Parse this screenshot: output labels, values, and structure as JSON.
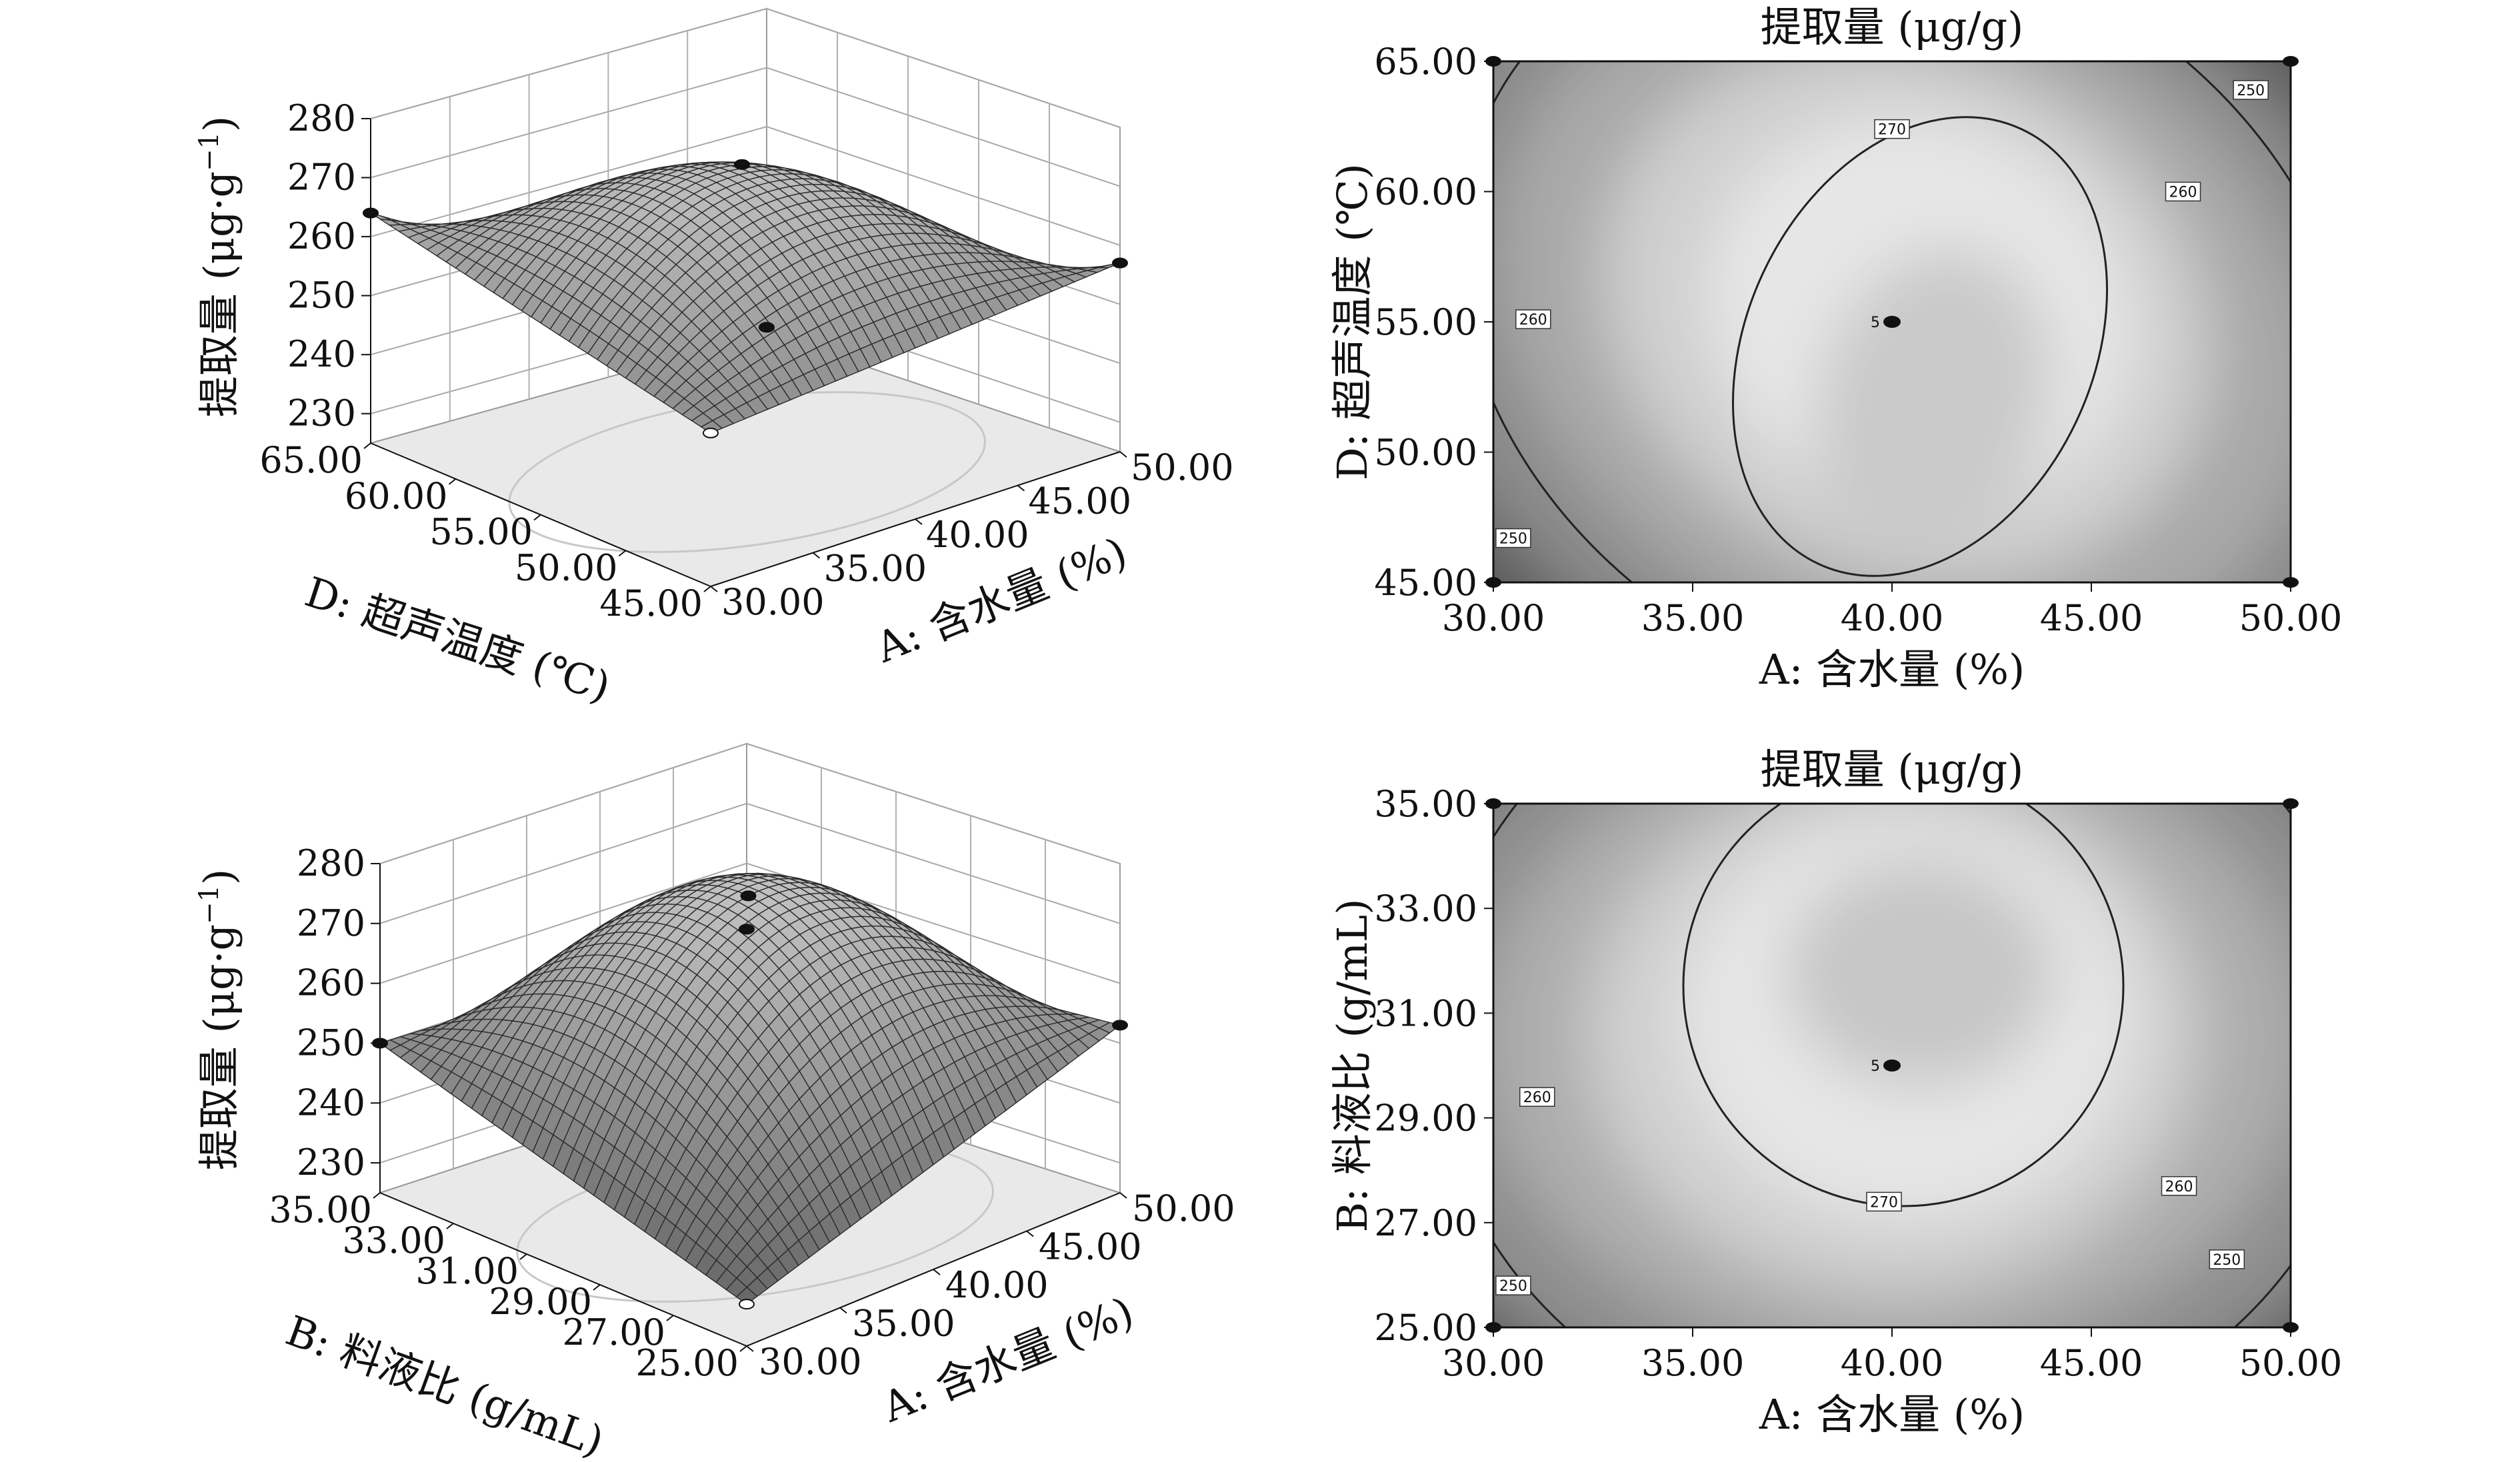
{
  "chart_data": [
    {
      "type": "surface",
      "panel": "top-left",
      "zlabel": "提取量 (μg·g",
      "zlabel_sup": "−1",
      "zlabel_close": ")",
      "zticks": [
        "230",
        "240",
        "250",
        "260",
        "270",
        "280"
      ],
      "ztick_values": [
        230,
        240,
        250,
        260,
        270,
        280
      ],
      "zlim": [
        225,
        280
      ],
      "xlabel": "A: 含水量 (%)",
      "xticks": [
        "30.00",
        "35.00",
        "40.00",
        "45.00",
        "50.00"
      ],
      "xlim": [
        30,
        50
      ],
      "ylabel": "D: 超声温度 (℃)",
      "yticks": [
        "45.00",
        "50.00",
        "55.00",
        "60.00",
        "65.00"
      ],
      "ylim": [
        45,
        65
      ],
      "design_points": [
        {
          "x": 30,
          "y": 45,
          "z": 251
        },
        {
          "x": 50,
          "y": 65,
          "z": 226
        },
        {
          "x": 30,
          "y": 65,
          "z": 264
        },
        {
          "x": 50,
          "y": 45,
          "z": 257
        },
        {
          "x": 40,
          "y": 55,
          "z": 274
        }
      ]
    },
    {
      "type": "contour",
      "panel": "top-right",
      "title": "提取量 (μg/g)",
      "xlabel": "A: 含水量 (%)",
      "xticks": [
        "30.00",
        "35.00",
        "40.00",
        "45.00",
        "50.00"
      ],
      "xlim": [
        30,
        50
      ],
      "ylabel": "D: 超声温度 (℃)",
      "yticks": [
        "45.00",
        "50.00",
        "55.00",
        "60.00",
        "65.00"
      ],
      "ylim": [
        45,
        65
      ],
      "contour_labels": [
        {
          "text": "270",
          "x": 40.0,
          "y": 62.4
        },
        {
          "text": "260",
          "x": 31.0,
          "y": 55.1
        },
        {
          "text": "260",
          "x": 47.3,
          "y": 60.0
        },
        {
          "text": "250",
          "x": 30.5,
          "y": 46.7
        },
        {
          "text": "250",
          "x": 49.0,
          "y": 63.9
        }
      ],
      "center": {
        "label": "5",
        "x": 40,
        "y": 55
      },
      "corner_points": [
        {
          "x": 30,
          "y": 45
        },
        {
          "x": 30,
          "y": 65
        },
        {
          "x": 50,
          "y": 45
        },
        {
          "x": 50,
          "y": 65
        }
      ]
    },
    {
      "type": "surface",
      "panel": "bottom-left",
      "zlabel": "提取量 (μg·g",
      "zlabel_sup": "−1",
      "zlabel_close": ")",
      "zticks": [
        "230",
        "240",
        "250",
        "260",
        "270",
        "280"
      ],
      "ztick_values": [
        230,
        240,
        250,
        260,
        270,
        280
      ],
      "zlim": [
        225,
        280
      ],
      "xlabel": "A: 含水量 (%)",
      "xticks": [
        "30.00",
        "35.00",
        "40.00",
        "45.00",
        "50.00"
      ],
      "xlim": [
        30,
        50
      ],
      "ylabel": "B: 料液比 (g/mL)",
      "yticks": [
        "25.00",
        "27.00",
        "29.00",
        "31.00",
        "33.00",
        "35.00"
      ],
      "ylim": [
        25,
        35
      ],
      "design_points": [
        {
          "x": 30,
          "y": 25,
          "z": 232
        },
        {
          "x": 50,
          "y": 35,
          "z": 249
        },
        {
          "x": 30,
          "y": 35,
          "z": 250
        },
        {
          "x": 50,
          "y": 25,
          "z": 253
        },
        {
          "x": 40,
          "y": 30,
          "z": 276
        }
      ]
    },
    {
      "type": "contour",
      "panel": "bottom-right",
      "title": "提取量 (μg/g)",
      "xlabel": "A: 含水量 (%)",
      "xticks": [
        "30.00",
        "35.00",
        "40.00",
        "45.00",
        "50.00"
      ],
      "xlim": [
        30,
        50
      ],
      "ylabel": "B: 料液比 (g/mL)",
      "yticks": [
        "25.00",
        "27.00",
        "29.00",
        "31.00",
        "33.00",
        "35.00"
      ],
      "ylim": [
        25,
        35
      ],
      "contour_labels": [
        {
          "text": "270",
          "x": 39.8,
          "y": 27.4
        },
        {
          "text": "260",
          "x": 31.1,
          "y": 29.4
        },
        {
          "text": "260",
          "x": 47.2,
          "y": 27.7
        },
        {
          "text": "250",
          "x": 30.5,
          "y": 25.8
        },
        {
          "text": "250",
          "x": 48.4,
          "y": 26.3
        }
      ],
      "center": {
        "label": "5",
        "x": 40,
        "y": 30
      },
      "corner_points": [
        {
          "x": 30,
          "y": 25
        },
        {
          "x": 30,
          "y": 35
        },
        {
          "x": 50,
          "y": 25
        },
        {
          "x": 50,
          "y": 35
        }
      ]
    }
  ]
}
